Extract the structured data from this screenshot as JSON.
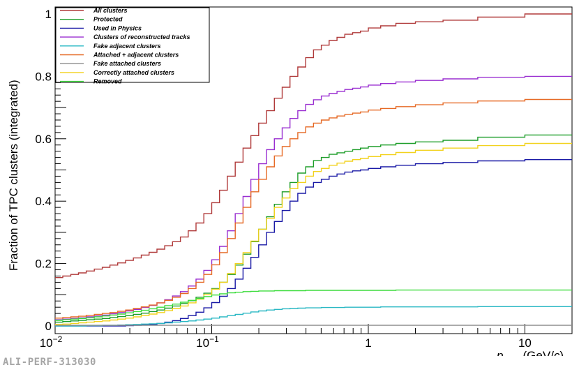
{
  "figure_id": "ALI-PERF-313030",
  "chart_data": {
    "type": "line",
    "title": "",
    "ylabel": "Fraction of TPC clusters (integrated)",
    "xlabel": "p_Tmc (GeV/c)",
    "xlabel_parts": {
      "symbol": "p",
      "subscript": "Tmc",
      "unit_open": " (GeV/",
      "unit_c": "c",
      "unit_close": ")"
    },
    "xscale": "log",
    "xlim": [
      0.01,
      20
    ],
    "ylim": [
      0,
      1.02
    ],
    "x_ticks": [
      {
        "base": "10",
        "exp": "−2",
        "value": 0.01
      },
      {
        "base": "10",
        "exp": "−1",
        "value": 0.1
      },
      {
        "label": "1",
        "value": 1
      },
      {
        "label": "10",
        "value": 10
      }
    ],
    "y_ticks": [
      {
        "label": "0",
        "value": 0
      },
      {
        "label": "0.2",
        "value": 0.2
      },
      {
        "label": "0.4",
        "value": 0.4
      },
      {
        "label": "0.6",
        "value": 0.6
      },
      {
        "label": "0.8",
        "value": 0.8
      },
      {
        "label": "1",
        "value": 1
      }
    ],
    "legend_position": "top-left",
    "x": [
      0.0112,
      0.0126,
      0.0141,
      0.0158,
      0.0178,
      0.02,
      0.0224,
      0.0251,
      0.0282,
      0.0316,
      0.0355,
      0.0398,
      0.0447,
      0.0501,
      0.0562,
      0.0631,
      0.0708,
      0.0794,
      0.0891,
      0.1,
      0.1122,
      0.1259,
      0.1413,
      0.1585,
      0.1778,
      0.1995,
      0.2239,
      0.2512,
      0.2818,
      0.3162,
      0.3548,
      0.3981,
      0.4467,
      0.5012,
      0.5623,
      0.631,
      0.7079,
      0.7943,
      0.8913,
      1.0,
      1.2,
      1.5,
      2.0,
      3.0,
      5.0,
      10.0,
      20.0
    ],
    "series": [
      {
        "name": "All clusters",
        "color": "#b03a3a",
        "values": [
          0.155,
          0.16,
          0.165,
          0.17,
          0.176,
          0.182,
          0.188,
          0.195,
          0.202,
          0.21,
          0.218,
          0.227,
          0.236,
          0.246,
          0.257,
          0.27,
          0.285,
          0.305,
          0.33,
          0.36,
          0.395,
          0.435,
          0.48,
          0.525,
          0.57,
          0.61,
          0.65,
          0.69,
          0.73,
          0.765,
          0.8,
          0.83,
          0.86,
          0.885,
          0.9,
          0.915,
          0.925,
          0.935,
          0.94,
          0.945,
          0.955,
          0.962,
          0.97,
          0.975,
          0.98,
          0.99,
          1.0
        ]
      },
      {
        "name": "Protected",
        "color": "#1e9e2a",
        "values": [
          0.012,
          0.014,
          0.016,
          0.018,
          0.02,
          0.022,
          0.024,
          0.027,
          0.03,
          0.033,
          0.037,
          0.041,
          0.046,
          0.051,
          0.057,
          0.064,
          0.072,
          0.081,
          0.092,
          0.105,
          0.12,
          0.14,
          0.165,
          0.195,
          0.23,
          0.27,
          0.31,
          0.35,
          0.39,
          0.43,
          0.46,
          0.49,
          0.51,
          0.53,
          0.54,
          0.55,
          0.555,
          0.56,
          0.565,
          0.57,
          0.575,
          0.58,
          0.585,
          0.59,
          0.595,
          0.605,
          0.612
        ]
      },
      {
        "name": "Used in Physics",
        "color": "#1a1aa6",
        "values": [
          0.0,
          0.0,
          0.0,
          0.0,
          0.0,
          0.0,
          0.0,
          0.0,
          0.0,
          0.001,
          0.002,
          0.003,
          0.005,
          0.008,
          0.012,
          0.017,
          0.024,
          0.033,
          0.044,
          0.058,
          0.075,
          0.095,
          0.12,
          0.15,
          0.185,
          0.22,
          0.26,
          0.3,
          0.335,
          0.37,
          0.4,
          0.425,
          0.445,
          0.46,
          0.47,
          0.48,
          0.487,
          0.493,
          0.497,
          0.5,
          0.505,
          0.51,
          0.515,
          0.52,
          0.524,
          0.529,
          0.533
        ]
      },
      {
        "name": "Clusters of reconstructed tracks",
        "color": "#9a2fd1",
        "values": [
          0.02,
          0.022,
          0.024,
          0.026,
          0.029,
          0.032,
          0.035,
          0.039,
          0.043,
          0.048,
          0.053,
          0.059,
          0.066,
          0.074,
          0.084,
          0.096,
          0.11,
          0.128,
          0.15,
          0.178,
          0.212,
          0.255,
          0.305,
          0.36,
          0.415,
          0.47,
          0.52,
          0.565,
          0.6,
          0.635,
          0.665,
          0.69,
          0.71,
          0.725,
          0.737,
          0.745,
          0.752,
          0.758,
          0.762,
          0.766,
          0.772,
          0.777,
          0.782,
          0.787,
          0.792,
          0.797,
          0.8
        ]
      },
      {
        "name": "Fake adjacent clusters",
        "color": "#2ab8c4",
        "values": [
          0.0,
          0.0,
          0.0,
          0.0,
          0.001,
          0.001,
          0.002,
          0.002,
          0.003,
          0.004,
          0.005,
          0.006,
          0.007,
          0.008,
          0.01,
          0.012,
          0.014,
          0.016,
          0.019,
          0.022,
          0.025,
          0.029,
          0.033,
          0.037,
          0.041,
          0.045,
          0.048,
          0.051,
          0.053,
          0.055,
          0.056,
          0.057,
          0.058,
          0.058,
          0.059,
          0.059,
          0.059,
          0.06,
          0.06,
          0.06,
          0.06,
          0.061,
          0.061,
          0.061,
          0.061,
          0.062,
          0.062
        ]
      },
      {
        "name": "Attached + adjacent clusters",
        "color": "#e66a26",
        "values": [
          0.025,
          0.027,
          0.029,
          0.031,
          0.034,
          0.037,
          0.04,
          0.043,
          0.047,
          0.051,
          0.056,
          0.061,
          0.067,
          0.074,
          0.082,
          0.092,
          0.104,
          0.12,
          0.14,
          0.165,
          0.196,
          0.235,
          0.28,
          0.33,
          0.38,
          0.43,
          0.47,
          0.51,
          0.545,
          0.575,
          0.6,
          0.62,
          0.638,
          0.65,
          0.66,
          0.667,
          0.673,
          0.678,
          0.682,
          0.686,
          0.692,
          0.697,
          0.703,
          0.709,
          0.715,
          0.721,
          0.726
        ]
      },
      {
        "name": "Fake attached clusters",
        "color": "#8c8c8c",
        "values": [
          0.002,
          0.002,
          0.002,
          0.002,
          0.002,
          0.002,
          0.002,
          0.002,
          0.002,
          0.002,
          0.002,
          0.002,
          0.002,
          0.002,
          0.002,
          0.002,
          0.002,
          0.002,
          0.002,
          0.002,
          0.002,
          0.002,
          0.002,
          0.002,
          0.002,
          0.002,
          0.002,
          0.002,
          0.002,
          0.002,
          0.002,
          0.002,
          0.002,
          0.002,
          0.002,
          0.002,
          0.002,
          0.002,
          0.002,
          0.002,
          0.002,
          0.002,
          0.002,
          0.002,
          0.002,
          0.002,
          0.002
        ]
      },
      {
        "name": "Correctly attached clusters",
        "color": "#f2d21e",
        "values": [
          0.005,
          0.006,
          0.008,
          0.01,
          0.012,
          0.014,
          0.016,
          0.019,
          0.022,
          0.025,
          0.029,
          0.033,
          0.038,
          0.043,
          0.049,
          0.056,
          0.064,
          0.074,
          0.086,
          0.1,
          0.118,
          0.14,
          0.168,
          0.2,
          0.235,
          0.272,
          0.31,
          0.345,
          0.38,
          0.41,
          0.44,
          0.46,
          0.48,
          0.495,
          0.505,
          0.515,
          0.522,
          0.528,
          0.533,
          0.537,
          0.543,
          0.549,
          0.556,
          0.563,
          0.57,
          0.578,
          0.585
        ]
      },
      {
        "name": "Removed",
        "color": "#3ddc3d",
        "values": [
          0.018,
          0.02,
          0.022,
          0.024,
          0.026,
          0.029,
          0.032,
          0.035,
          0.038,
          0.042,
          0.046,
          0.05,
          0.055,
          0.06,
          0.065,
          0.07,
          0.076,
          0.082,
          0.088,
          0.094,
          0.099,
          0.103,
          0.106,
          0.108,
          0.11,
          0.111,
          0.112,
          0.112,
          0.113,
          0.113,
          0.113,
          0.113,
          0.114,
          0.114,
          0.114,
          0.114,
          0.114,
          0.114,
          0.114,
          0.114,
          0.114,
          0.114,
          0.115,
          0.115,
          0.115,
          0.115,
          0.115
        ]
      }
    ]
  }
}
